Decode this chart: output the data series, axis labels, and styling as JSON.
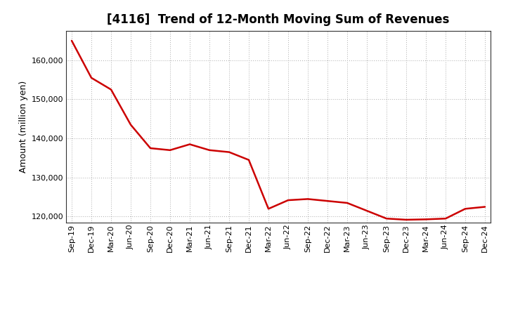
{
  "title": "[4116]  Trend of 12-Month Moving Sum of Revenues",
  "ylabel": "Amount (million yen)",
  "line_color": "#cc0000",
  "background_color": "#ffffff",
  "plot_bg_color": "#ffffff",
  "grid_color": "#aaaaaa",
  "ylim": [
    118500,
    167500
  ],
  "yticks": [
    120000,
    130000,
    140000,
    150000,
    160000
  ],
  "labels": [
    "Sep-19",
    "Dec-19",
    "Mar-20",
    "Jun-20",
    "Sep-20",
    "Dec-20",
    "Mar-21",
    "Jun-21",
    "Sep-21",
    "Dec-21",
    "Mar-22",
    "Jun-22",
    "Sep-22",
    "Dec-22",
    "Mar-23",
    "Jun-23",
    "Sep-23",
    "Dec-23",
    "Mar-24",
    "Jun-24",
    "Sep-24",
    "Dec-24"
  ],
  "values": [
    165000,
    155500,
    152500,
    143500,
    137500,
    137000,
    138500,
    137000,
    136500,
    134500,
    122000,
    124200,
    124500,
    124000,
    123500,
    121500,
    119500,
    119200,
    119300,
    119500,
    122000,
    122500
  ],
  "title_fontsize": 12,
  "tick_fontsize": 8,
  "ylabel_fontsize": 9
}
